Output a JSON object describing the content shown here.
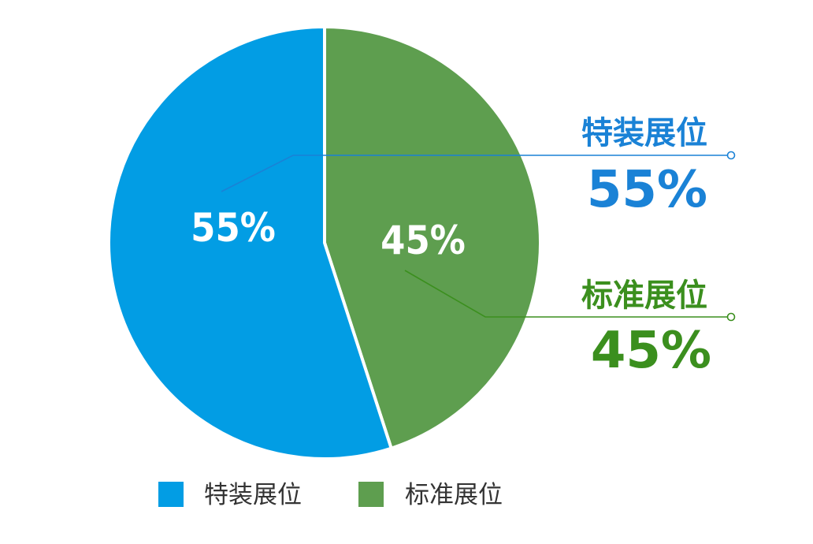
{
  "chart_data": {
    "type": "pie",
    "categories": [
      "特装展位",
      "标准展位"
    ],
    "values": [
      55,
      45
    ],
    "value_labels": [
      "55%",
      "45%"
    ],
    "colors": [
      "#029de4",
      "#5e9e4f"
    ],
    "callout_colors": [
      "#1a82d6",
      "#3b8f1e"
    ],
    "legend": {
      "placement": "bottom",
      "items": [
        "特装展位",
        "标准展位"
      ]
    }
  },
  "callouts": [
    {
      "name": "特装展位",
      "value": "55%"
    },
    {
      "name": "标准展位",
      "value": "45%"
    }
  ]
}
